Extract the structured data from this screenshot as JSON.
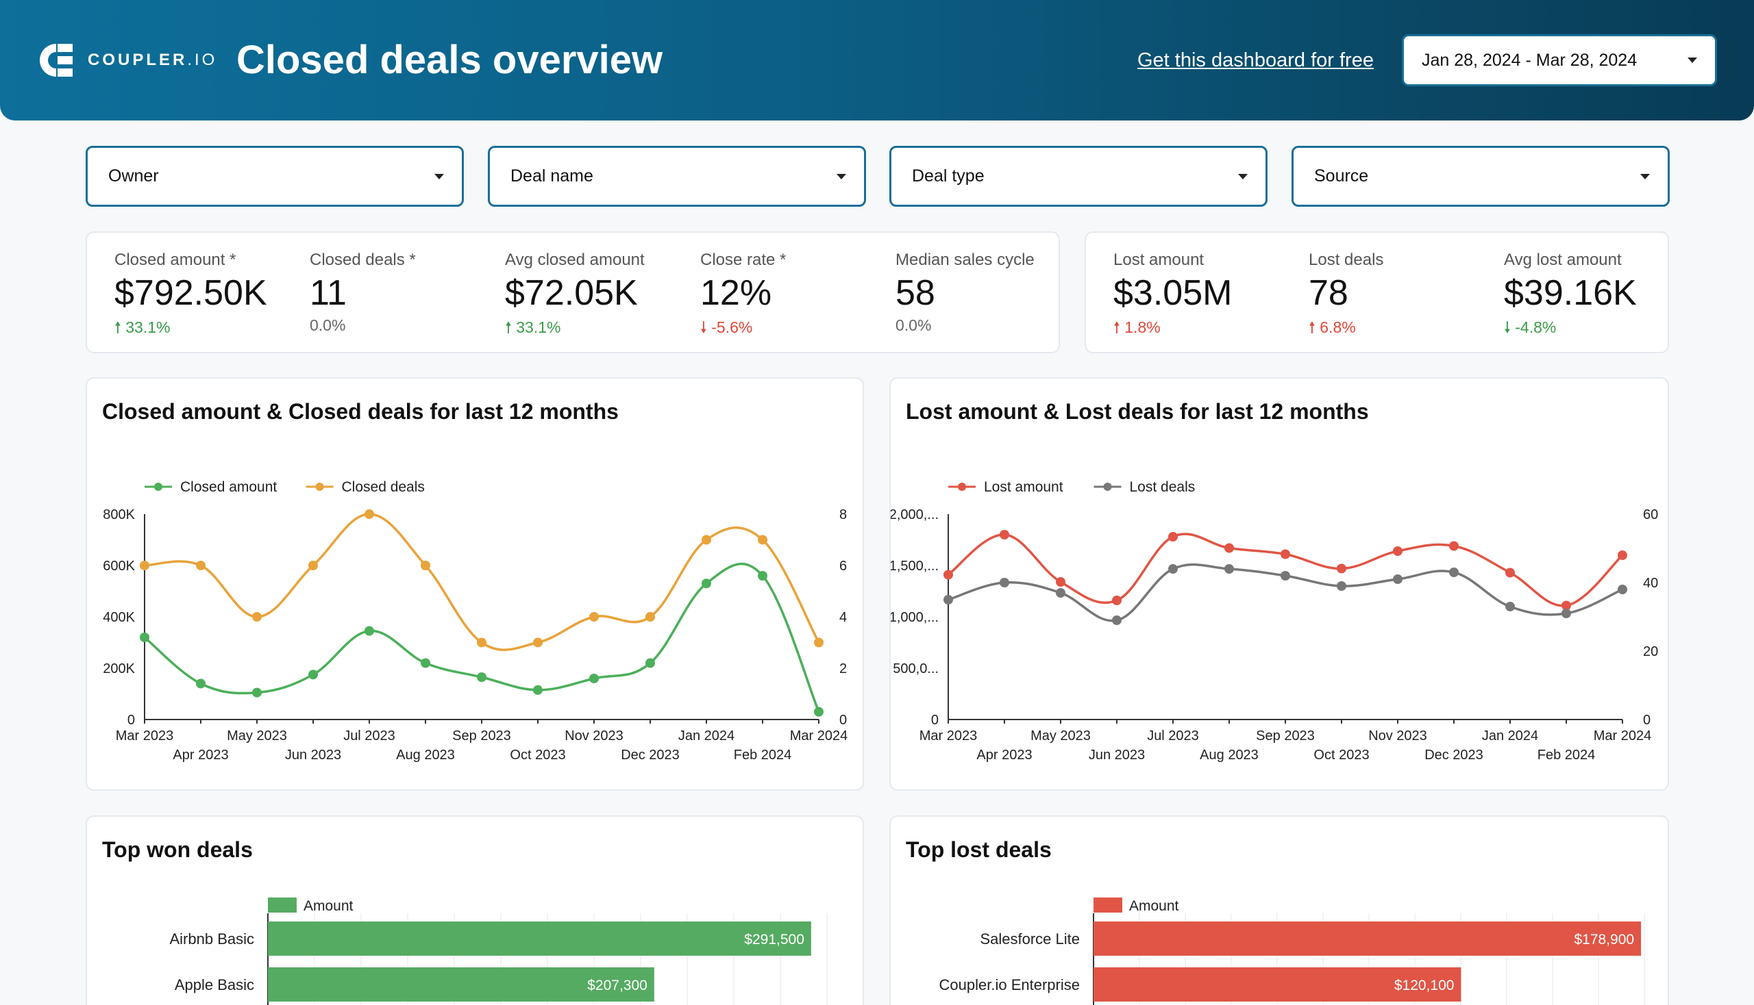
{
  "header": {
    "brand": "COUPLER",
    "brand_suffix": ".IO",
    "title": "Closed deals overview",
    "cta_link": "Get this dashboard for free",
    "date_range": "Jan 28, 2024 - Mar 28, 2024"
  },
  "filters": [
    "Owner",
    "Deal name",
    "Deal type",
    "Source"
  ],
  "kpis_won": [
    {
      "label": "Closed amount *",
      "value": "$792.50K",
      "delta": "33.1%",
      "trend": "up-green"
    },
    {
      "label": "Closed deals *",
      "value": "11",
      "delta": "0.0%",
      "trend": "flat"
    },
    {
      "label": "Avg closed amount",
      "value": "$72.05K",
      "delta": "33.1%",
      "trend": "up-green"
    },
    {
      "label": "Close rate *",
      "value": "12%",
      "delta": "-5.6%",
      "trend": "down-red"
    },
    {
      "label": "Median sales cycle",
      "value": "58",
      "delta": "0.0%",
      "trend": "flat"
    }
  ],
  "kpis_lost": [
    {
      "label": "Lost amount",
      "value": "$3.05M",
      "delta": "1.8%",
      "trend": "up-red"
    },
    {
      "label": "Lost deals",
      "value": "78",
      "delta": "6.8%",
      "trend": "up-red"
    },
    {
      "label": "Avg lost amount",
      "value": "$39.16K",
      "delta": "-4.8%",
      "trend": "down-green"
    }
  ],
  "chart_data": [
    {
      "type": "line",
      "title": "Closed amount & Closed deals for last 12 months",
      "categories": [
        "Mar 2023",
        "Apr 2023",
        "May 2023",
        "Jun 2023",
        "Jul 2023",
        "Aug 2023",
        "Sep 2023",
        "Oct 2023",
        "Nov 2023",
        "Dec 2023",
        "Jan 2024",
        "Feb 2024",
        "Mar 2024"
      ],
      "series": [
        {
          "name": "Closed amount",
          "axis": "left",
          "color": "#4caf5a",
          "values": [
            320000,
            140000,
            105000,
            175000,
            345000,
            220000,
            165000,
            115000,
            160000,
            220000,
            530000,
            560000,
            30000
          ]
        },
        {
          "name": "Closed deals",
          "axis": "right",
          "color": "#e8a33a",
          "values": [
            6,
            6,
            4,
            6,
            8,
            6,
            3,
            3,
            4,
            4,
            7,
            7,
            3
          ]
        }
      ],
      "y_left": {
        "min": 0,
        "max": 800000,
        "ticks": [
          "0",
          "200K",
          "400K",
          "600K",
          "800K"
        ]
      },
      "y_right": {
        "min": 0,
        "max": 8,
        "ticks": [
          "0",
          "2",
          "4",
          "6",
          "8"
        ]
      },
      "legend": "top-left"
    },
    {
      "type": "line",
      "title": "Lost amount & Lost deals for last 12 months",
      "categories": [
        "Mar 2023",
        "Apr 2023",
        "May 2023",
        "Jun 2023",
        "Jul 2023",
        "Aug 2023",
        "Sep 2023",
        "Oct 2023",
        "Nov 2023",
        "Dec 2023",
        "Jan 2024",
        "Feb 2024",
        "Mar 2024"
      ],
      "series": [
        {
          "name": "Lost amount",
          "axis": "left",
          "color": "#e05545",
          "values": [
            1410000,
            1800000,
            1340000,
            1160000,
            1780000,
            1670000,
            1610000,
            1470000,
            1640000,
            1690000,
            1430000,
            1110000,
            1600000
          ]
        },
        {
          "name": "Lost deals",
          "axis": "right",
          "color": "#777777",
          "values": [
            35,
            40,
            37,
            29,
            44,
            44,
            42,
            39,
            41,
            43,
            33,
            31,
            38
          ]
        }
      ],
      "y_left": {
        "min": 0,
        "max": 2000000,
        "ticks": [
          "0",
          "500,0...",
          "1,000,...",
          "1,500,...",
          "2,000,..."
        ]
      },
      "y_right": {
        "min": 0,
        "max": 60,
        "ticks": [
          "0",
          "20",
          "40",
          "60"
        ]
      },
      "legend": "top-left"
    },
    {
      "type": "bar",
      "orientation": "horizontal",
      "title": "Top won deals",
      "legend": "Amount",
      "color": "#56ab62",
      "categories": [
        "Airbnb Basic",
        "Apple Basic"
      ],
      "values": [
        291500,
        207300
      ],
      "value_labels": [
        "$291,500",
        "$207,300"
      ],
      "xlim": [
        0,
        300000
      ]
    },
    {
      "type": "bar",
      "orientation": "horizontal",
      "title": "Top lost deals",
      "legend": "Amount",
      "color": "#e05545",
      "categories": [
        "Salesforce Lite",
        "Coupler.io Enterprise"
      ],
      "values": [
        178900,
        120100
      ],
      "value_labels": [
        "$178,900",
        "$120,100"
      ],
      "xlim": [
        0,
        180000
      ]
    }
  ]
}
